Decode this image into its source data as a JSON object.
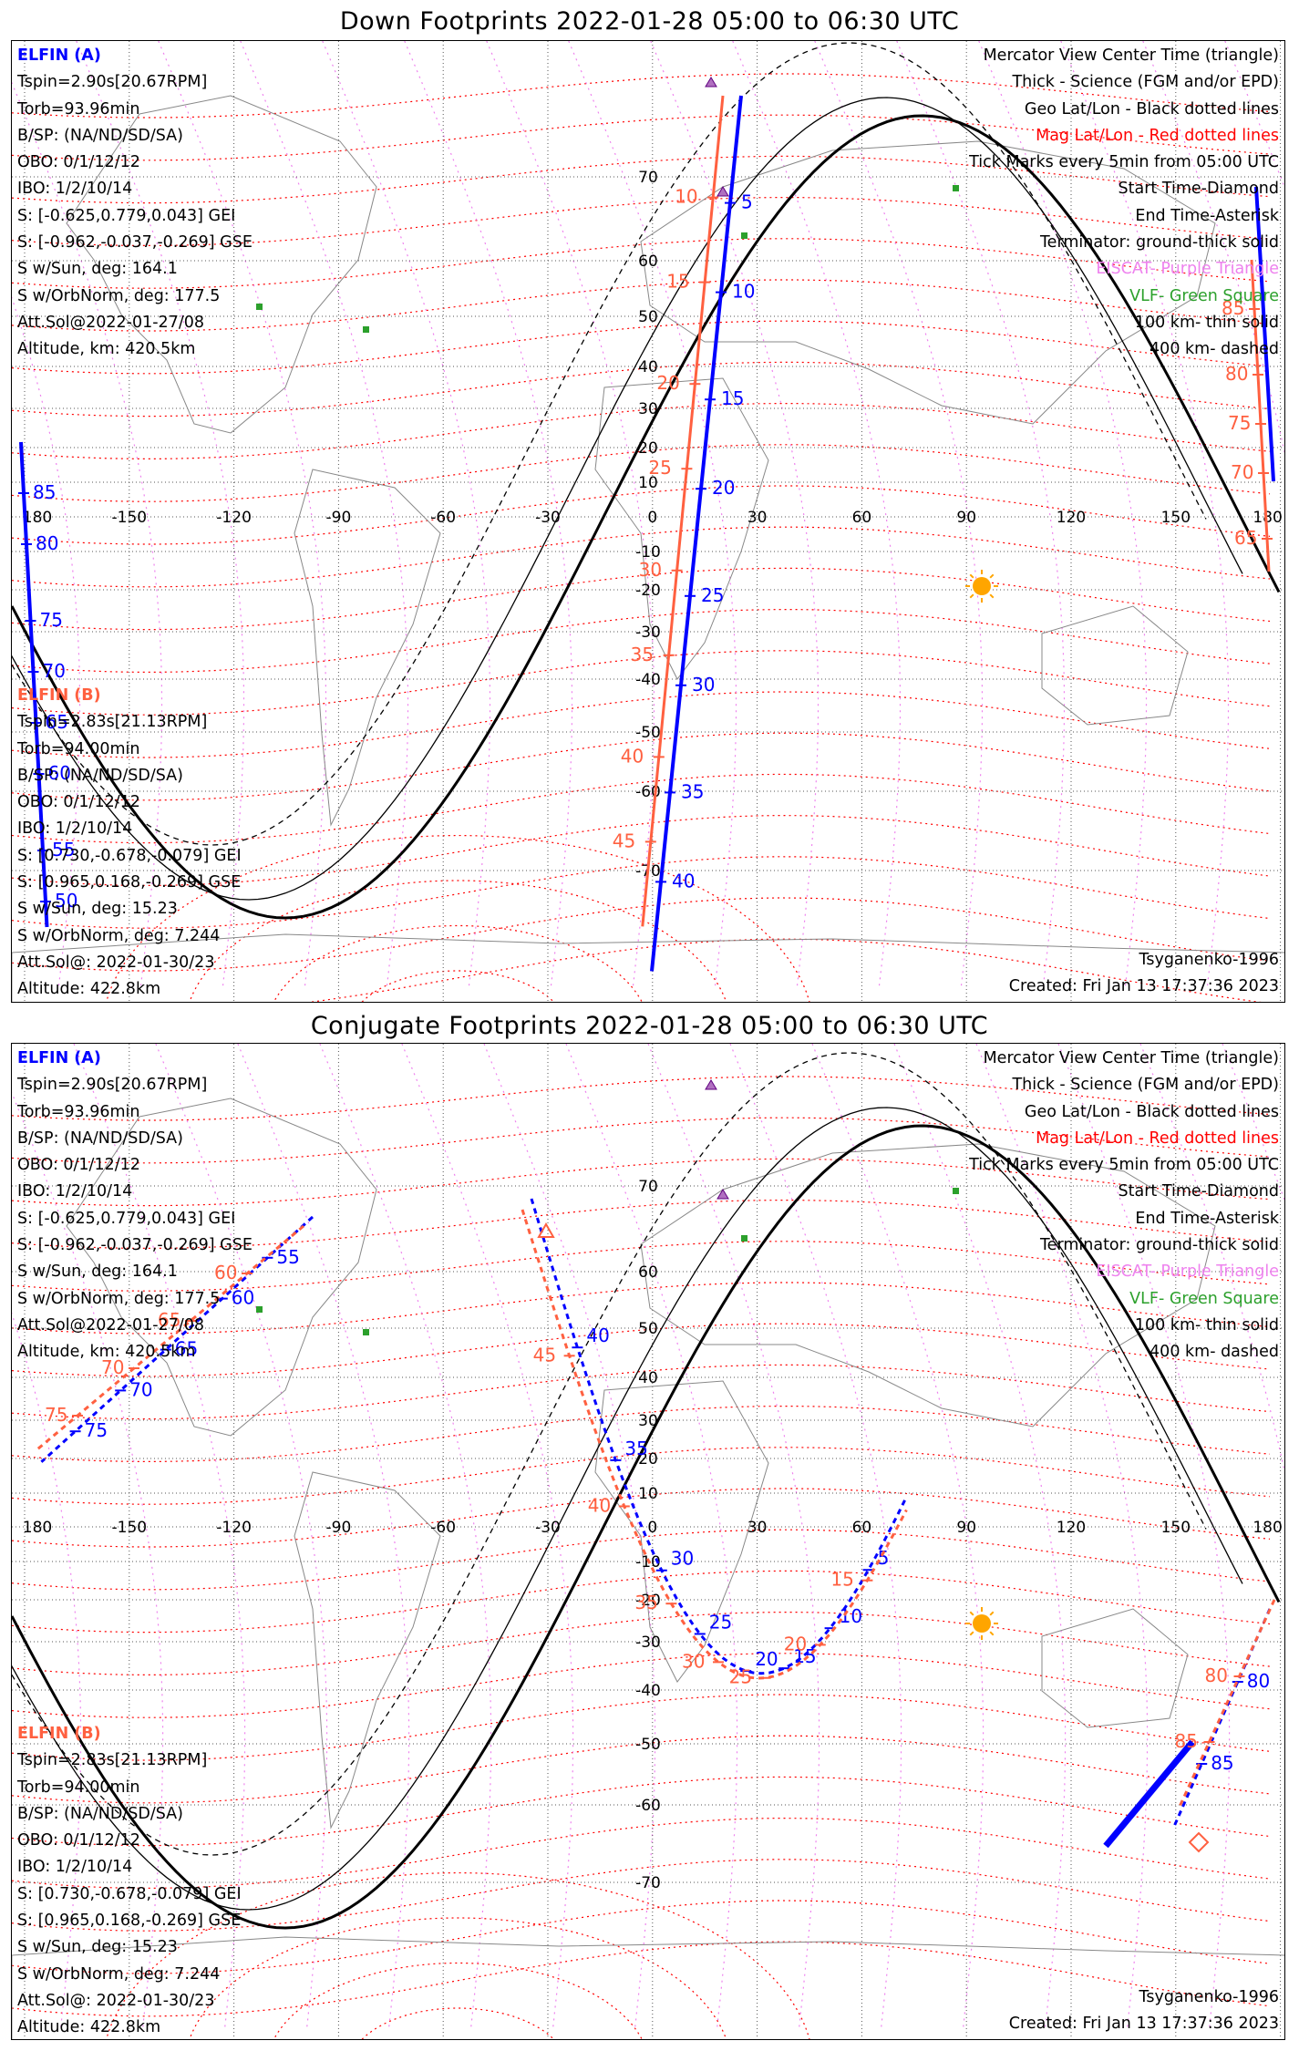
{
  "panels": [
    {
      "title": "Down Footprints 2022-01-28 05:00 to 06:30 UTC",
      "elfin_a": {
        "header": "ELFIN (A)",
        "lines": [
          "Tspin=2.90s[20.67RPM]",
          "Torb=93.96min",
          "B/SP: (NA/ND/SD/SA)",
          "OBO: 0/1/12/12",
          "IBO: 1/2/10/14",
          "S: [-0.625,0.779,0.043] GEI",
          "S: [-0.962,-0.037,-0.269] GSE",
          "S w/Sun, deg: 164.1",
          "S w/OrbNorm, deg: 177.5",
          "Att.Sol@2022-01-27/08",
          "Altitude, km: 420.5km"
        ]
      },
      "elfin_b": {
        "header": "ELFIN (B)",
        "lines": [
          "Tspin=2.83s[21.13RPM]",
          "Torb=94.00min",
          "B/SP: (NA/ND/SD/SA)",
          "OBO: 0/1/12/12",
          "IBO: 1/2/10/14",
          "S: [0.730,-0.678,-0.079] GEI",
          "S: [0.965,0.168,-0.269] GSE",
          "S w/Sun, deg: 15.23",
          "S w/OrbNorm, deg: 7.244",
          "Att.Sol@: 2022-01-30/23",
          "Altitude: 422.8km"
        ]
      },
      "legend": [
        "Mercator View Center Time (triangle)",
        "Thick - Science (FGM and/or EPD)",
        "Geo Lat/Lon - Black dotted lines",
        "Mag Lat/Lon - Red dotted lines",
        "Tick Marks every 5min from 05:00 UTC",
        "Start Time-Diamond",
        "End Time-Asterisk",
        "Terminator: ground-thick solid",
        "EISCAT- Purple Triangle",
        "VLF- Green Square",
        "100 km- thin solid",
        "400 km- dashed"
      ],
      "model": "Tsyganenko-1996",
      "created": "Created: Fri Jan 13 17:37:36 2023"
    },
    {
      "title": "Conjugate Footprints 2022-01-28 05:00 to 06:30 UTC",
      "elfin_a": {
        "header": "ELFIN (A)",
        "lines": [
          "Tspin=2.90s[20.67RPM]",
          "Torb=93.96min",
          "B/SP: (NA/ND/SD/SA)",
          "OBO: 0/1/12/12",
          "IBO: 1/2/10/14",
          "S: [-0.625,0.779,0.043] GEI",
          "S: [-0.962,-0.037,-0.269] GSE",
          "S w/Sun, deg: 164.1",
          "S w/OrbNorm, deg: 177.5",
          "Att.Sol@2022-01-27/08",
          "Altitude, km: 420.5km"
        ]
      },
      "elfin_b": {
        "header": "ELFIN (B)",
        "lines": [
          "Tspin=2.83s[21.13RPM]",
          "Torb=94.00min",
          "B/SP: (NA/ND/SD/SA)",
          "OBO: 0/1/12/12",
          "IBO: 1/2/10/14",
          "S: [0.730,-0.678,-0.079] GEI",
          "S: [0.965,0.168,-0.269] GSE",
          "S w/Sun, deg: 15.23",
          "S w/OrbNorm, deg: 7.244",
          "Att.Sol@: 2022-01-30/23",
          "Altitude: 422.8km"
        ]
      },
      "legend": [
        "Mercator View Center Time (triangle)",
        "Thick - Science (FGM and/or EPD)",
        "Geo Lat/Lon - Black dotted lines",
        "Mag Lat/Lon - Red dotted lines",
        "Tick Marks every 5min from 05:00 UTC",
        "Start Time-Diamond",
        "End Time-Asterisk",
        "Terminator: ground-thick solid",
        "EISCAT- Purple Triangle",
        "VLF- Green Square",
        "100 km- thin solid",
        "400 km- dashed"
      ],
      "model": "Tsyganenko-1996",
      "created": "Created: Fri Jan 13 17:37:36 2023"
    }
  ],
  "axes": {
    "lon_labels": [
      "180",
      "-150",
      "-120",
      "-90",
      "-60",
      "-30",
      "0",
      "30",
      "60",
      "90",
      "120",
      "150",
      "180"
    ],
    "lat_labels": [
      "70",
      "60",
      "50",
      "40",
      "30",
      "20",
      "10",
      "-10",
      "-20",
      "-30",
      "-40",
      "-50",
      "-60",
      "-70"
    ]
  },
  "tracks": {
    "down_a_ticks": [
      "5",
      "10",
      "15",
      "20",
      "25",
      "30",
      "35",
      "40",
      "85",
      "80",
      "75",
      "70",
      "65",
      "60",
      "55",
      "50"
    ],
    "down_b_ticks": [
      "10",
      "15",
      "20",
      "25",
      "30",
      "35",
      "40",
      "45",
      "85",
      "80",
      "75",
      "70",
      "65"
    ],
    "conj_a_ticks": [
      "40",
      "35",
      "30",
      "25",
      "20",
      "15",
      "10",
      "5",
      "55",
      "60",
      "65",
      "70",
      "75",
      "80",
      "85"
    ],
    "conj_b_ticks": [
      "45",
      "40",
      "35",
      "30",
      "25",
      "20",
      "15",
      "60",
      "65",
      "70",
      "75",
      "80",
      "85"
    ]
  },
  "colors": {
    "elfin_a": "#0000ff",
    "elfin_b": "#ff6040",
    "mag_grid": "#ff0000",
    "geo_grid": "#555555",
    "eiscat": "#ee82ee",
    "vlf": "#2ca02c",
    "sun": "#ffa500"
  },
  "icons": {
    "sun": "sun-icon",
    "eiscat": "purple-triangle-icon",
    "vlf": "green-square-icon"
  }
}
